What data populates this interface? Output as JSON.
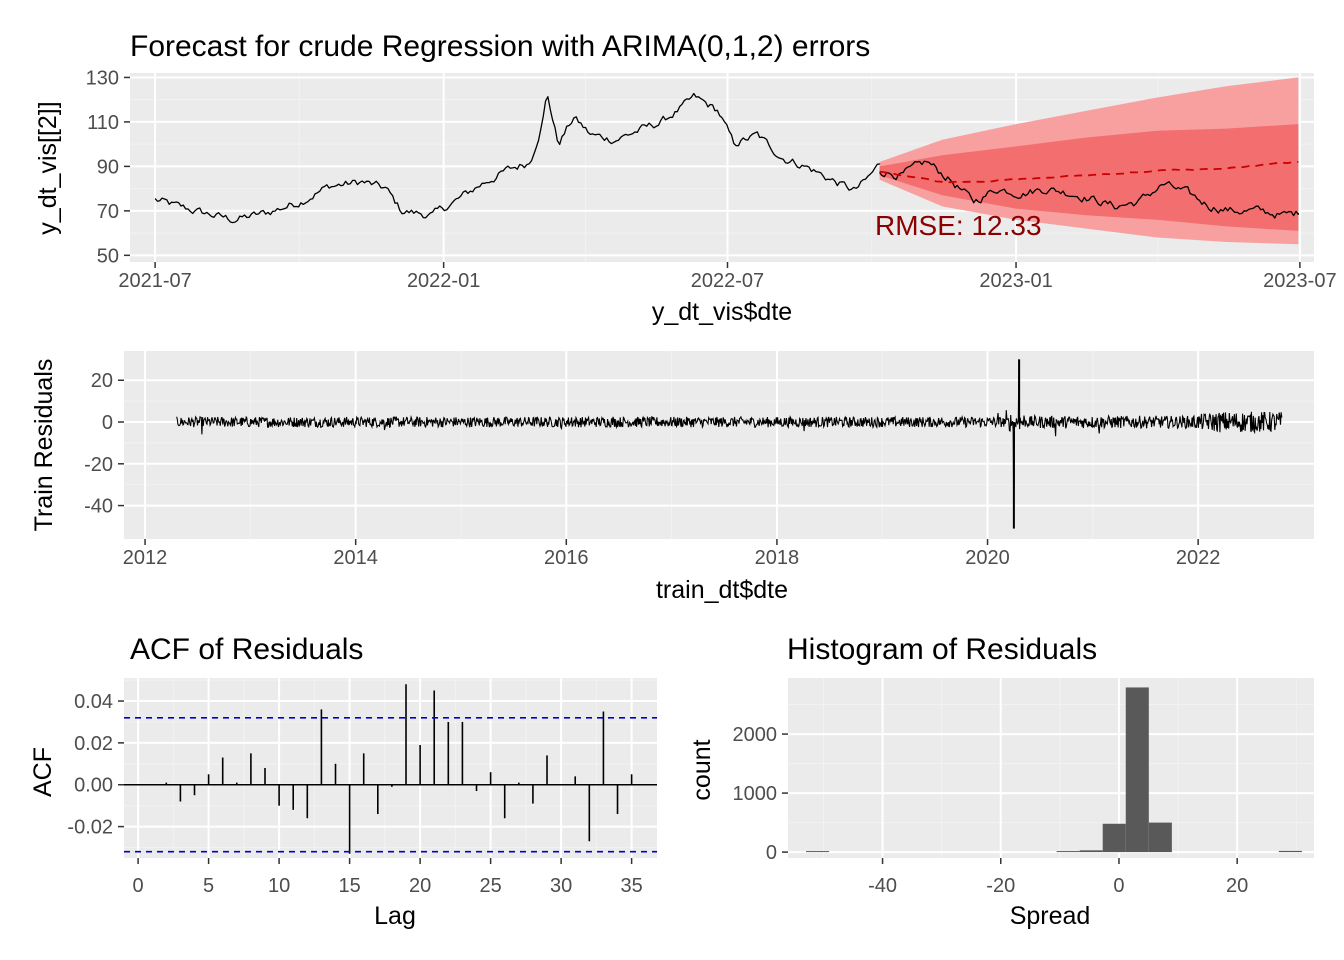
{
  "colors": {
    "panel_bg": "#ebebeb",
    "grid_major": "#ffffff",
    "grid_minor": "#f2f2f2",
    "line": "#000000",
    "forecast_band_outer": "#f8a0a0",
    "forecast_band_inner": "#f36f6f",
    "forecast_mean": "#cc0000",
    "annotation": "#8b0000",
    "ci_line": "#0000cc",
    "hist_fill": "#595959"
  },
  "chart_data": [
    {
      "id": "forecast",
      "type": "line",
      "title": "Forecast for crude Regression with ARIMA(0,1,2) errors",
      "xlabel": "y_dt_vis$dte",
      "ylabel": "y_dt_vis[[2]]",
      "x_ticks": [
        "2021-07",
        "2022-01",
        "2022-07",
        "2023-01",
        "2023-07"
      ],
      "y_ticks": [
        50,
        70,
        90,
        110,
        130
      ],
      "ylim": [
        47,
        132
      ],
      "grid": true,
      "annotation": "RMSE: 12.33",
      "series": [
        {
          "name": "",
          "kind": "observed",
          "x": [
            "2021-07-01",
            "2021-07-15",
            "2021-08-01",
            "2021-08-20",
            "2021-09-10",
            "2021-10-01",
            "2021-10-20",
            "2021-11-10",
            "2021-11-25",
            "2021-12-05",
            "2021-12-25",
            "2022-01-10",
            "2022-01-25",
            "2022-02-10",
            "2022-02-25",
            "2022-03-05",
            "2022-03-08",
            "2022-03-15",
            "2022-03-25",
            "2022-04-05",
            "2022-04-20",
            "2022-05-05",
            "2022-05-20",
            "2022-06-05",
            "2022-06-10",
            "2022-06-25",
            "2022-07-05",
            "2022-07-20",
            "2022-08-05",
            "2022-08-20",
            "2022-09-05",
            "2022-09-20",
            "2022-09-28",
            "2022-10-06"
          ],
          "y": [
            75,
            72,
            69,
            66,
            69,
            74,
            81,
            83,
            80,
            70,
            68,
            75,
            82,
            88,
            92,
            110,
            123,
            100,
            112,
            104,
            102,
            106,
            110,
            118,
            121,
            115,
            100,
            104,
            94,
            90,
            84,
            79,
            84,
            91
          ]
        },
        {
          "name": "",
          "kind": "test_actual",
          "x": [
            "2022-10-06",
            "2022-10-20",
            "2022-11-05",
            "2022-11-20",
            "2022-12-05",
            "2022-12-20",
            "2023-01-05",
            "2023-01-20",
            "2023-02-05",
            "2023-02-20",
            "2023-03-05",
            "2023-03-20",
            "2023-04-05",
            "2023-04-20",
            "2023-05-05",
            "2023-05-20",
            "2023-06-05",
            "2023-06-20",
            "2023-06-30"
          ],
          "y": [
            88,
            86,
            92,
            84,
            74,
            80,
            78,
            80,
            78,
            75,
            72,
            74,
            82,
            78,
            72,
            70,
            70,
            68,
            69
          ]
        },
        {
          "name": "",
          "kind": "forecast_mean",
          "x": [
            "2022-10-06",
            "2022-11-15",
            "2023-01-01",
            "2023-02-15",
            "2023-04-01",
            "2023-05-15",
            "2023-06-30"
          ],
          "y": [
            88,
            83,
            84,
            86,
            88,
            89,
            92
          ]
        },
        {
          "name": "",
          "kind": "band_80",
          "x": [
            "2022-10-06",
            "2022-11-15",
            "2023-01-01",
            "2023-02-15",
            "2023-04-01",
            "2023-05-15",
            "2023-06-30"
          ],
          "lower": [
            86,
            77,
            71,
            68,
            66,
            63,
            61
          ],
          "upper": [
            90,
            95,
            99,
            103,
            106,
            107,
            109
          ]
        },
        {
          "name": "",
          "kind": "band_95",
          "x": [
            "2022-10-06",
            "2022-11-15",
            "2023-01-01",
            "2023-02-15",
            "2023-04-01",
            "2023-05-15",
            "2023-06-30"
          ],
          "lower": [
            84,
            72,
            66,
            62,
            58,
            56,
            55
          ],
          "upper": [
            92,
            102,
            109,
            115,
            121,
            126,
            130
          ]
        }
      ]
    },
    {
      "id": "residuals",
      "type": "line",
      "title": "",
      "xlabel": "train_dt$dte",
      "ylabel": "Train Residuals",
      "x_ticks": [
        "2012",
        "2014",
        "2016",
        "2018",
        "2020",
        "2022"
      ],
      "y_ticks": [
        -40,
        -20,
        0,
        20
      ],
      "xlim": [
        2011.8,
        2023.1
      ],
      "ylim": [
        -56,
        34
      ],
      "grid": true,
      "series": [
        {
          "name": "",
          "x": [
            2012.3,
            2019.5,
            2020.2,
            2020.25,
            2020.3,
            2020.35,
            2020.45,
            2021.9,
            2022.2,
            2022.8
          ],
          "y": [
            0,
            0,
            0,
            -51,
            30,
            0,
            0,
            0,
            0,
            0
          ],
          "noise_amplitude": [
            2.5,
            2.5,
            2.5,
            2.5,
            2.5,
            2.5,
            3,
            3,
            5,
            5
          ]
        }
      ]
    },
    {
      "id": "acf",
      "type": "bar",
      "title": "ACF of Residuals",
      "xlabel": "Lag",
      "ylabel": "ACF",
      "x_ticks": [
        0,
        5,
        10,
        15,
        20,
        25,
        30,
        35
      ],
      "y_ticks": [
        -0.02,
        0.0,
        0.02,
        0.04
      ],
      "y_tick_labels": [
        "-0.02",
        "0.00",
        "0.02",
        "0.04"
      ],
      "xlim": [
        -1,
        36.8
      ],
      "ylim": [
        -0.035,
        0.051
      ],
      "ci": 0.032,
      "grid": true,
      "lags": [
        1,
        2,
        3,
        4,
        5,
        6,
        7,
        8,
        9,
        10,
        11,
        12,
        13,
        14,
        15,
        16,
        17,
        18,
        19,
        20,
        21,
        22,
        23,
        24,
        25,
        26,
        27,
        28,
        29,
        30,
        31,
        32,
        33,
        34,
        35
      ],
      "values": [
        0.0,
        0.001,
        -0.008,
        -0.005,
        0.005,
        0.013,
        0.001,
        0.015,
        0.008,
        -0.01,
        -0.012,
        -0.016,
        0.036,
        0.01,
        -0.033,
        0.015,
        -0.014,
        -0.001,
        0.048,
        0.019,
        0.045,
        0.03,
        0.03,
        -0.003,
        0.006,
        -0.016,
        0.001,
        -0.009,
        0.014,
        0.0,
        0.004,
        -0.027,
        0.035,
        -0.014,
        0.005
      ]
    },
    {
      "id": "histogram",
      "type": "bar",
      "title": "Histogram of Residuals",
      "xlabel": "Spread",
      "ylabel": "count",
      "x_ticks": [
        -40,
        -20,
        0,
        20
      ],
      "y_ticks": [
        0,
        1000,
        2000
      ],
      "xlim": [
        -56,
        33
      ],
      "ylim": [
        -100,
        2950
      ],
      "grid": true,
      "bin_width": 3.9,
      "bin_centers": [
        -51,
        -8.6,
        -4.7,
        -0.8,
        3.1,
        7.0,
        29
      ],
      "counts": [
        1,
        15,
        30,
        480,
        2790,
        500,
        20
      ]
    }
  ]
}
